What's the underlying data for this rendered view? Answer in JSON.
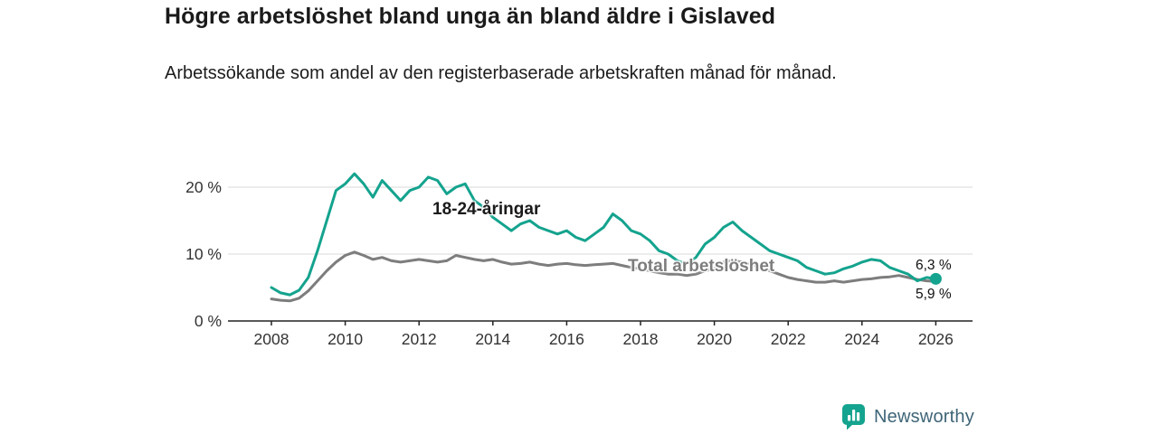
{
  "chart_data": {
    "type": "line",
    "title": "Högre arbetslöshet bland unga än bland äldre i Gislaved",
    "subtitle": "Arbetssökande som andel av den registerbaserade arbetskraften månad för månad.",
    "xlabel": "",
    "ylabel": "",
    "ylim": [
      0,
      24
    ],
    "xlim": [
      2007.5,
      2027
    ],
    "grid": "horizontal",
    "legend_position": "inline-labels",
    "y_axis": {
      "ticks": [
        {
          "value": 0,
          "label": "0 %"
        },
        {
          "value": 10,
          "label": "10 %"
        },
        {
          "value": 20,
          "label": "20 %"
        }
      ]
    },
    "x_axis": {
      "ticks": [
        {
          "value": 2008,
          "label": "2008"
        },
        {
          "value": 2010,
          "label": "2010"
        },
        {
          "value": 2012,
          "label": "2012"
        },
        {
          "value": 2014,
          "label": "2014"
        },
        {
          "value": 2016,
          "label": "2016"
        },
        {
          "value": 2018,
          "label": "2018"
        },
        {
          "value": 2020,
          "label": "2020"
        },
        {
          "value": 2022,
          "label": "2022"
        },
        {
          "value": 2024,
          "label": "2024"
        },
        {
          "value": 2026,
          "label": "2026"
        }
      ]
    },
    "series": [
      {
        "name": "18-24-åringar",
        "color": "#14a38e",
        "end_label": "6,3 %",
        "end_value": 6.3,
        "x_start": 2008.0,
        "x_step": 0.25,
        "values": [
          5.0,
          4.2,
          3.9,
          4.6,
          6.5,
          10.5,
          15.0,
          19.5,
          20.5,
          22.0,
          20.5,
          18.5,
          21.0,
          19.5,
          18.0,
          19.5,
          20.0,
          21.5,
          21.0,
          19.0,
          20.0,
          20.5,
          18.0,
          17.0,
          15.5,
          14.5,
          13.5,
          14.5,
          15.0,
          14.0,
          13.5,
          13.0,
          13.5,
          12.5,
          12.0,
          13.0,
          14.0,
          16.0,
          15.0,
          13.5,
          13.0,
          12.0,
          10.5,
          10.0,
          9.0,
          8.5,
          9.5,
          11.5,
          12.5,
          14.0,
          14.8,
          13.5,
          12.5,
          11.5,
          10.5,
          10.0,
          9.5,
          9.0,
          8.0,
          7.5,
          7.0,
          7.2,
          7.8,
          8.2,
          8.8,
          9.2,
          9.0,
          8.0,
          7.5,
          7.0,
          6.0,
          6.5,
          6.3
        ]
      },
      {
        "name": "Total arbetslöshet",
        "color": "#7d7d7d",
        "end_label": "5,9 %",
        "end_value": 5.9,
        "x_start": 2008.0,
        "x_step": 0.25,
        "values": [
          3.3,
          3.1,
          3.0,
          3.4,
          4.5,
          6.0,
          7.5,
          8.8,
          9.8,
          10.3,
          9.8,
          9.2,
          9.5,
          9.0,
          8.8,
          9.0,
          9.2,
          9.0,
          8.8,
          9.0,
          9.8,
          9.5,
          9.2,
          9.0,
          9.2,
          8.8,
          8.5,
          8.6,
          8.8,
          8.5,
          8.3,
          8.5,
          8.6,
          8.4,
          8.3,
          8.4,
          8.5,
          8.6,
          8.3,
          8.0,
          7.8,
          7.5,
          7.2,
          7.0,
          7.0,
          6.8,
          7.0,
          7.5,
          7.8,
          8.8,
          9.0,
          8.8,
          8.5,
          8.0,
          7.5,
          7.0,
          6.5,
          6.2,
          6.0,
          5.8,
          5.8,
          6.0,
          5.8,
          6.0,
          6.2,
          6.3,
          6.5,
          6.6,
          6.8,
          6.5,
          6.2,
          6.0,
          5.9
        ]
      }
    ]
  },
  "colors": {
    "accent_teal": "#14a38e",
    "line_gray": "#7d7d7d",
    "axis_text": "#333333",
    "gridline": "#d9d9d9",
    "brand_text": "#3e6577"
  },
  "footer": {
    "brand": "Newsworthy"
  }
}
